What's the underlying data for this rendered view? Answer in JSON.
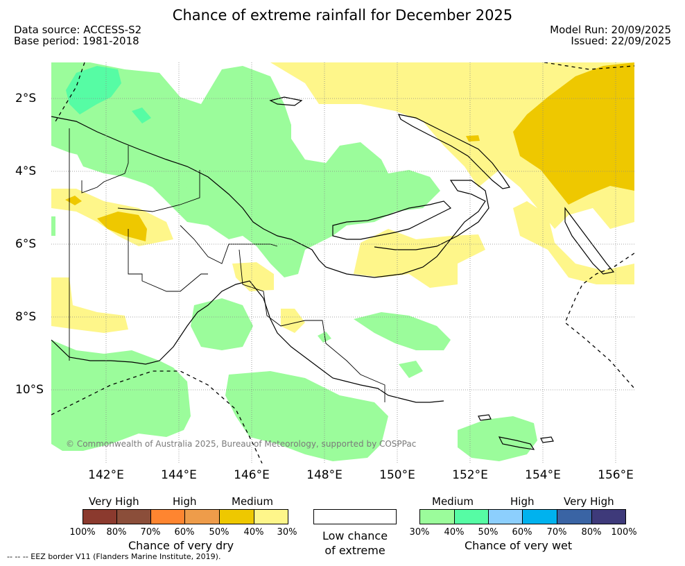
{
  "title": "Chance of extreme rainfall for December 2025",
  "meta": {
    "data_source": "Data source: ACCESS-S2",
    "base_period": "Base period: 1981-2018",
    "model_run": "Model Run: 20/09/2025",
    "issued": "Issued: 22/09/2025"
  },
  "map": {
    "lat_labels": [
      "2°S",
      "4°S",
      "6°S",
      "8°S",
      "10°S"
    ],
    "lon_labels": [
      "142°E",
      "144°E",
      "146°E",
      "148°E",
      "150°E",
      "152°E",
      "154°E",
      "156°E"
    ],
    "copyright": "© Commonwealth of Australia 2025, Bureau of Meteorology, supported by COSPPac"
  },
  "legend": {
    "dry": {
      "categories": [
        "Very High",
        "High",
        "Medium"
      ],
      "colors": [
        "#8b3a2e",
        "#8b4e3a",
        "#fe8530",
        "#ee9c4a",
        "#eec800",
        "#fef68a"
      ],
      "ticks": [
        "100%",
        "80%",
        "70%",
        "60%",
        "50%",
        "40%",
        "30%"
      ],
      "title": "Chance of very dry"
    },
    "neutral": {
      "title_line1": "Low chance",
      "title_line2": "of extreme",
      "color": "#ffffff"
    },
    "wet": {
      "categories": [
        "Medium",
        "High",
        "Very High"
      ],
      "colors": [
        "#9bfc9b",
        "#56fca4",
        "#8ccffd",
        "#00b2ee",
        "#3a64a4",
        "#3e3a7a"
      ],
      "ticks": [
        "30%",
        "40%",
        "50%",
        "60%",
        "70%",
        "80%",
        "100%"
      ],
      "title": "Chance of very wet"
    }
  },
  "footer": "--  --  -- EEZ border V11 (Flanders Marine Institute, 2019)."
}
